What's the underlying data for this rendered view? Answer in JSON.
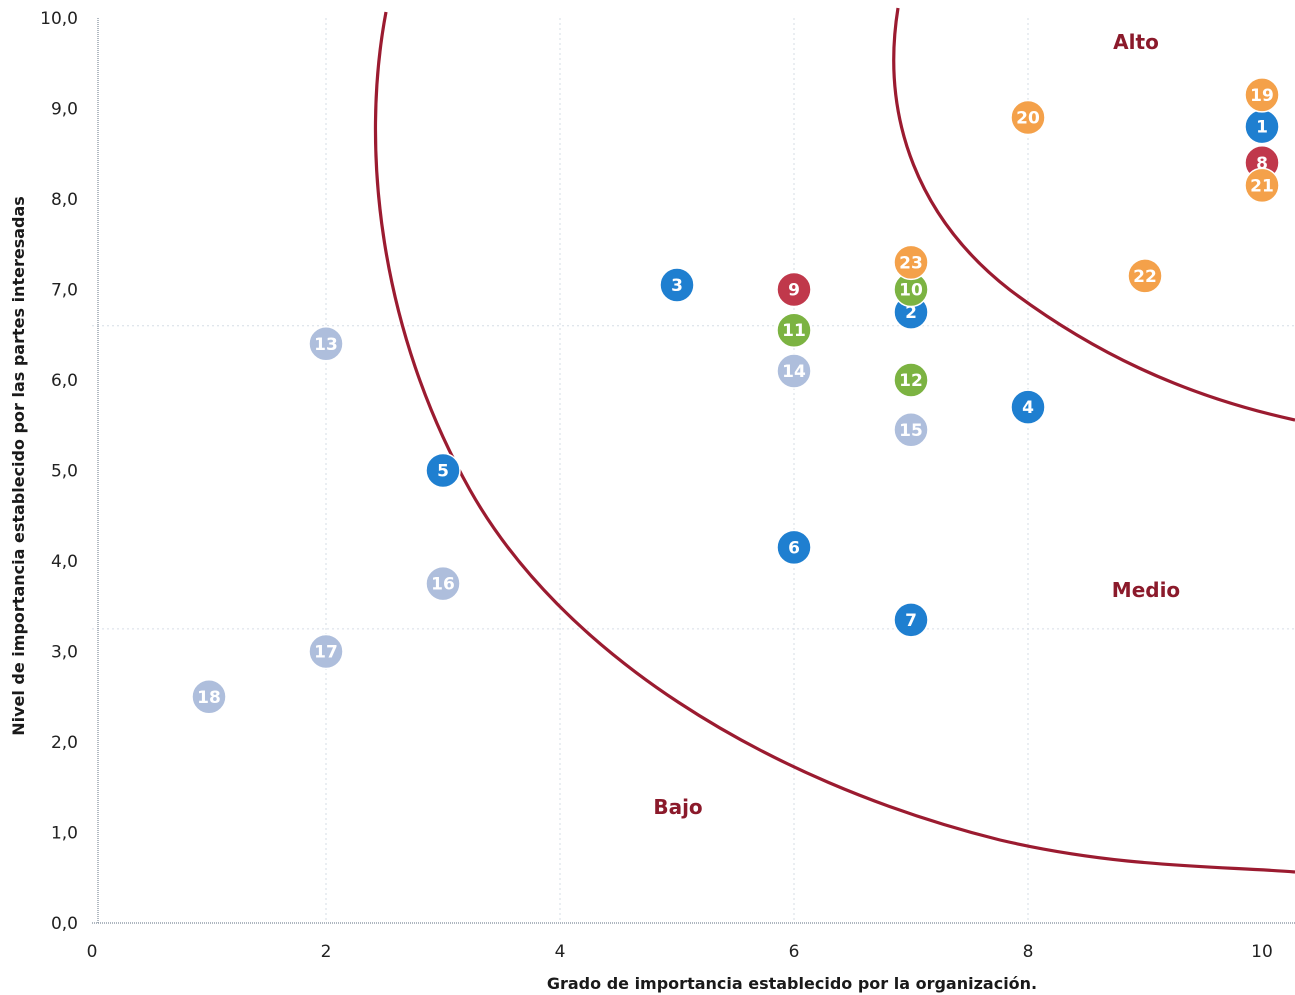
{
  "chart_data": {
    "type": "scatter",
    "title": "",
    "xlabel": "Grado de importancia establecido por la organización.",
    "ylabel": "Nivel de importancia establecido por las partes interesadas",
    "xlim": [
      0,
      10
    ],
    "ylim": [
      0,
      10
    ],
    "x_ticks": [
      "0",
      "2",
      "4",
      "6",
      "8",
      "10"
    ],
    "y_ticks": [
      "0,0",
      "1,0",
      "2,0",
      "3,0",
      "4,0",
      "5,0",
      "6,0",
      "7,0",
      "8,0",
      "9,0",
      "10,0"
    ],
    "grid": "dotted",
    "zones": [
      {
        "label": "Alto"
      },
      {
        "label": "Medio"
      },
      {
        "label": "Bajo"
      }
    ],
    "colors": {
      "blue": "#1f7fd0",
      "red": "#c0384b",
      "green": "#7cb342",
      "orange": "#f4a14a",
      "lightblue": "#aebedc",
      "curve": "#9b1b30"
    },
    "points": [
      {
        "label": "1",
        "x": 10,
        "y": 8.8,
        "color": "blue"
      },
      {
        "label": "2",
        "x": 7,
        "y": 6.75,
        "color": "blue"
      },
      {
        "label": "3",
        "x": 5,
        "y": 7.05,
        "color": "blue"
      },
      {
        "label": "4",
        "x": 8,
        "y": 5.7,
        "color": "blue"
      },
      {
        "label": "5",
        "x": 3,
        "y": 5.0,
        "color": "blue"
      },
      {
        "label": "6",
        "x": 6,
        "y": 4.15,
        "color": "blue"
      },
      {
        "label": "7",
        "x": 7,
        "y": 3.35,
        "color": "blue"
      },
      {
        "label": "8",
        "x": 10,
        "y": 8.4,
        "color": "red"
      },
      {
        "label": "9",
        "x": 6,
        "y": 7.0,
        "color": "red"
      },
      {
        "label": "10",
        "x": 7,
        "y": 7.0,
        "color": "green"
      },
      {
        "label": "11",
        "x": 6,
        "y": 6.55,
        "color": "green"
      },
      {
        "label": "12",
        "x": 7,
        "y": 6.0,
        "color": "green"
      },
      {
        "label": "13",
        "x": 2,
        "y": 6.4,
        "color": "lightblue"
      },
      {
        "label": "14",
        "x": 6,
        "y": 6.1,
        "color": "lightblue"
      },
      {
        "label": "15",
        "x": 7,
        "y": 5.45,
        "color": "lightblue"
      },
      {
        "label": "16",
        "x": 3,
        "y": 3.75,
        "color": "lightblue"
      },
      {
        "label": "17",
        "x": 2,
        "y": 3.0,
        "color": "lightblue"
      },
      {
        "label": "18",
        "x": 1,
        "y": 2.5,
        "color": "lightblue"
      },
      {
        "label": "19",
        "x": 10,
        "y": 9.15,
        "color": "orange"
      },
      {
        "label": "20",
        "x": 8,
        "y": 8.9,
        "color": "orange"
      },
      {
        "label": "21",
        "x": 10,
        "y": 8.15,
        "color": "orange"
      },
      {
        "label": "22",
        "x": 9,
        "y": 7.15,
        "color": "orange"
      },
      {
        "label": "23",
        "x": 7,
        "y": 7.3,
        "color": "orange"
      }
    ]
  }
}
